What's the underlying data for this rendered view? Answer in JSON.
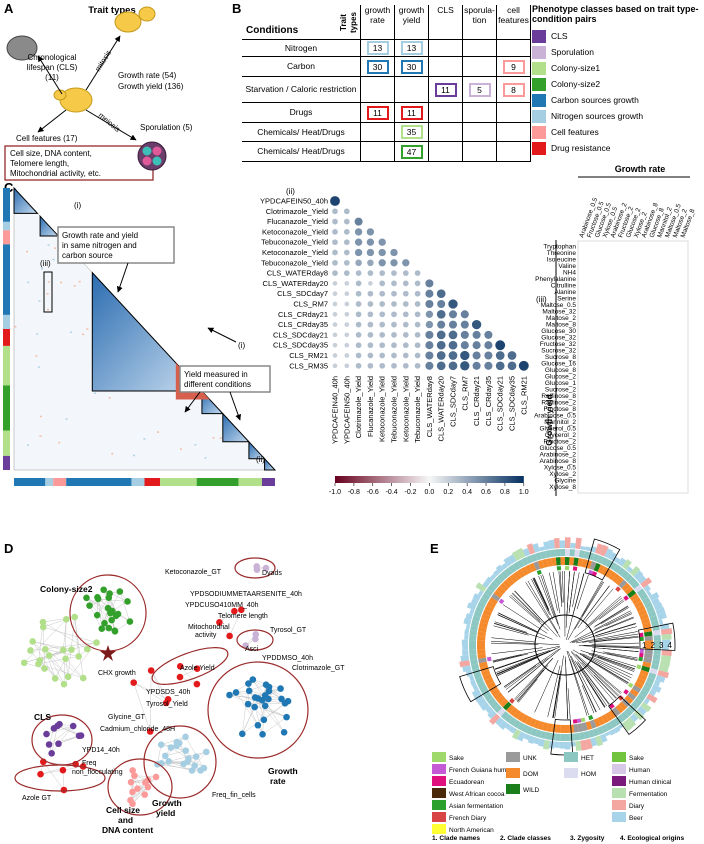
{
  "panel_a": {
    "letter": "A",
    "title": "Trait types",
    "cls": [
      "Chronological",
      "lifespan (CLS)",
      "(11)"
    ],
    "mitosis": "mitosis",
    "growth": [
      "Growth rate (54)",
      "Growth yield (136)"
    ],
    "meiosis": "meiosis",
    "cell_features": "Cell features (17)",
    "sporulation": "Sporulation (5)",
    "cell_features_box": [
      "Cell size, DNA content,",
      "Telomere length,",
      "Mitochondrial activity, etc."
    ]
  },
  "panel_b": {
    "letter": "B",
    "header": {
      "trait_types": "Trait types",
      "conditions": "Conditions",
      "columns": [
        "growth rate",
        "growth yield",
        "CLS",
        "sporula-tion",
        "cell features"
      ]
    },
    "rows": [
      {
        "condition": "Nitrogen",
        "cells": [
          13,
          13,
          null,
          null,
          null
        ],
        "colors": [
          "#a6cee3",
          "#a6cee3",
          null,
          null,
          null
        ]
      },
      {
        "condition": "Carbon",
        "cells": [
          30,
          30,
          null,
          null,
          9
        ],
        "colors": [
          "#1f78b4",
          "#1f78b4",
          null,
          null,
          "#fb9a99"
        ]
      },
      {
        "condition": "Starvation / Caloric restriction",
        "cells": [
          null,
          null,
          11,
          5,
          8
        ],
        "colors": [
          null,
          null,
          "#6a3d9a",
          "#cab2d6",
          "#fb9a99"
        ]
      },
      {
        "condition": "Drugs",
        "cells": [
          11,
          11,
          null,
          null,
          null
        ],
        "colors": [
          "#e31a1c",
          "#e31a1c",
          null,
          null,
          null
        ]
      },
      {
        "condition": "Chemicals/ Heat/Drugs",
        "cells": [
          null,
          35,
          null,
          null,
          null
        ],
        "colors": [
          null,
          "#b2df8a",
          null,
          null,
          null
        ]
      },
      {
        "condition": "Chemicals/ Heat/Drugs",
        "cells": [
          null,
          47,
          null,
          null,
          null
        ],
        "colors": [
          null,
          "#33a02c",
          null,
          null,
          null
        ]
      }
    ],
    "legend_title": "Phenotype classes based on trait type-condition pairs",
    "legend": [
      {
        "name": "CLS",
        "color": "#6a3d9a"
      },
      {
        "name": "Sporulation",
        "color": "#cab2d6"
      },
      {
        "name": "Colony-size1",
        "color": "#b2df8a"
      },
      {
        "name": "Colony-size2",
        "color": "#33a02c"
      },
      {
        "name": "Carbon sources growth",
        "color": "#1f78b4"
      },
      {
        "name": "Nitrogen sources growth",
        "color": "#a6cee3"
      },
      {
        "name": "Cell features",
        "color": "#fb9a99"
      },
      {
        "name": "Drug resistance",
        "color": "#e31a1c"
      }
    ]
  },
  "panel_c": {
    "letter": "C",
    "annotations": {
      "i_top": "(i)",
      "box1": [
        "Growth rate and yield",
        "in same nitrogen and",
        "carbon source"
      ],
      "iii": "(iii)",
      "i_mid": "(i)",
      "box2": [
        "Yield measured in",
        "different conditions"
      ],
      "ii": "(ii)"
    },
    "corr": {
      "label": "(ii)",
      "rows": [
        "YPDCAFEIN50_40h",
        "Clotrimazole_Yield",
        "Flucanazole_Yield",
        "Ketoconazole_Yield",
        "Tebuconazole_Yield",
        "Ketoconazole_Yield",
        "Tebuconazole_Yield",
        "CLS_WATERday8",
        "CLS_WATERday20",
        "CLS_SDCday7",
        "CLS_RM7",
        "CLS_CRday21",
        "CLS_CRday35",
        "CLS_SDCday21",
        "CLS_SDCday35",
        "CLS_RM21",
        "CLS_RM35"
      ],
      "columns": [
        "YPDCAFEIN40_40h",
        "YPDCAFEIN50_40h",
        "Clotrimazole_Yield",
        "Flucanazole_Yield",
        "Ketoconazole_Yield",
        "Tebuconazole_Yield",
        "Ketoconazole_Yield",
        "Tebuconazole_Yield",
        "CLS_WATERday8",
        "CLS_WATERday20",
        "CLS_SDCday7",
        "CLS_RM7",
        "CLS_CRday21",
        "CLS_CRday35",
        "CLS_SDCday21",
        "CLS_SDCday35",
        "CLS_RM21"
      ],
      "values": [
        [
          0.9
        ],
        [
          0.3,
          0.3
        ],
        [
          0.3,
          0.3,
          0.6
        ],
        [
          0.3,
          0.3,
          0.5,
          0.5
        ],
        [
          0.3,
          0.3,
          0.5,
          0.5,
          0.5
        ],
        [
          0.3,
          0.3,
          0.5,
          0.5,
          0.5,
          0.5
        ],
        [
          0.3,
          0.3,
          0.4,
          0.4,
          0.5,
          0.5,
          0.5
        ],
        [
          0.3,
          0.3,
          0.3,
          0.3,
          0.3,
          0.3,
          0.3,
          0.3
        ],
        [
          0.2,
          0.2,
          0.3,
          0.2,
          0.3,
          0.3,
          0.3,
          0.3,
          0.6
        ],
        [
          0.2,
          0.2,
          0.3,
          0.3,
          0.3,
          0.3,
          0.3,
          0.3,
          0.6,
          0.7
        ],
        [
          0.2,
          0.2,
          0.3,
          0.3,
          0.3,
          0.3,
          0.3,
          0.3,
          0.6,
          0.6,
          0.8
        ],
        [
          0.2,
          0.2,
          0.3,
          0.3,
          0.3,
          0.3,
          0.3,
          0.3,
          0.5,
          0.7,
          0.6,
          0.6
        ],
        [
          0.2,
          0.2,
          0.3,
          0.3,
          0.3,
          0.3,
          0.3,
          0.3,
          0.5,
          0.6,
          0.6,
          0.6,
          0.8
        ],
        [
          0.2,
          0.2,
          0.3,
          0.3,
          0.3,
          0.3,
          0.3,
          0.3,
          0.6,
          0.7,
          0.7,
          0.6,
          0.6,
          0.6
        ],
        [
          0.2,
          0.2,
          0.3,
          0.3,
          0.3,
          0.3,
          0.3,
          0.3,
          0.6,
          0.7,
          0.7,
          0.6,
          0.6,
          0.6,
          0.9
        ],
        [
          0.2,
          0.2,
          0.3,
          0.3,
          0.3,
          0.3,
          0.3,
          0.3,
          0.6,
          0.7,
          0.7,
          0.8,
          0.6,
          0.6,
          0.7,
          0.7
        ],
        [
          0.2,
          0.2,
          0.3,
          0.3,
          0.3,
          0.3,
          0.3,
          0.3,
          0.6,
          0.7,
          0.7,
          0.8,
          0.6,
          0.6,
          0.7,
          0.7,
          0.9
        ]
      ],
      "colorbar_lim": [
        -1,
        1
      ],
      "colorbar_ticks": [
        {
          "value": -1,
          "label": "-1.0"
        },
        {
          "value": -0.8,
          "label": "-0.8"
        },
        {
          "value": -0.6,
          "label": "-0.6"
        },
        {
          "value": -0.4,
          "label": "-0.4"
        },
        {
          "value": -0.2,
          "label": "-0.2"
        },
        {
          "value": 0,
          "label": "0.0"
        },
        {
          "value": 0.2,
          "label": "0.2"
        },
        {
          "value": 0.4,
          "label": "0.4"
        },
        {
          "value": 0.6,
          "label": "0.6"
        },
        {
          "value": 0.8,
          "label": "0.8"
        },
        {
          "value": 1,
          "label": "1.0"
        }
      ]
    },
    "iii": {
      "label": "(iii)",
      "x_title": "Growth rate",
      "y_title": "Growth yield",
      "columns": [
        "Arabinose_0.5",
        "Fructose_0.5",
        "Glucose_0.5",
        "Xylose_0.5",
        "Arabinose_2",
        "Fructose_2",
        "Glucose_2",
        "Xylose_2",
        "Arabinose_8",
        "Glucose_8",
        "Mannitol_2",
        "Maltose_0.5",
        "Maltose_2",
        "Maltose_8"
      ],
      "rows": [
        "Tryptophan",
        "Threonine",
        "Isoleucine",
        "Valine",
        "NH4",
        "Phenylalanine",
        "Citrulline",
        "Alanine",
        "Serine",
        "Maltose_0.5",
        "Maltose_32",
        "Maltose_2",
        "Maltose_8",
        "Glucose_30",
        "Glucose_32",
        "Fructose_32",
        "Sucrose_32",
        "Sucrose_8",
        "Glucose_16",
        "Glucose_8",
        "Glucose_2",
        "Glucose_1",
        "Sucrose_2",
        "Raffinose_8",
        "Raffinose_2",
        "Fructose_8",
        "Arabinose_0.5",
        "Mannitol_2",
        "Glycerol_0.5",
        "Glycerol_2",
        "Fructose_2",
        "Glucose_0.5",
        "Arabinose_2",
        "Arabinose_8",
        "Xylose_0.5",
        "Xylose_2",
        "Glycine",
        "Xylose_8"
      ]
    }
  },
  "panel_d": {
    "letter": "D",
    "labels": [
      "Ketoconazole_GT",
      "Dyads",
      "Colony-size2",
      "YPDSODIUMMETAARSENITE_40h",
      "YPDCUSO410MM_40h",
      "Telomere length",
      "Mitochondrial",
      "activity",
      "Tyrosol_GT",
      "Asci",
      "YPDDMSO_40h",
      "Clotrimazole_GT",
      "CHX growth",
      "Azole Yield",
      "YPDSDS_40h",
      "Tyrosol_Yield",
      "Glycine_GT",
      "Cadmium_chloride_48H",
      "CLS",
      "YPD14_40h",
      "Freq",
      "non_flocculating",
      "Growth",
      "rate",
      "Freq_fin_cells",
      "Growth",
      "yield",
      "Azole GT",
      "Cell size",
      "and",
      "DNA content"
    ]
  },
  "panel_e": {
    "letter": "E",
    "ring_labels": [
      1,
      2,
      3,
      4
    ],
    "legends": [
      {
        "title": "1. Clade names",
        "items": [
          {
            "name": "Sake",
            "color": "#9fd86b"
          },
          {
            "name": "French Guiana human",
            "color": "#c45ad6"
          },
          {
            "name": "Ecuadorean",
            "color": "#e0117f"
          },
          {
            "name": "West African cocoa",
            "color": "#4a2a0a"
          },
          {
            "name": "Asian fermentation",
            "color": "#2ca02c"
          },
          {
            "name": "French Diary",
            "color": "#d84545"
          },
          {
            "name": "North American",
            "color": "#ffff33"
          }
        ]
      },
      {
        "title": "2. Clade classes",
        "items": [
          {
            "name": "UNK",
            "color": "#9a9a9a"
          },
          {
            "name": "DOM",
            "color": "#f58a2c"
          },
          {
            "name": "WILD",
            "color": "#1a7f1a"
          }
        ]
      },
      {
        "title": "3. Zygosity",
        "items": [
          {
            "name": "HET",
            "color": "#8cc7c2"
          },
          {
            "name": "HOM",
            "color": "#dcdcf0"
          }
        ]
      },
      {
        "title": "4. Ecological origins",
        "items": [
          {
            "name": "Sake",
            "color": "#72c43e"
          },
          {
            "name": "Human",
            "color": "#d8c8e8"
          },
          {
            "name": "Human clinical",
            "color": "#7a1a7a"
          },
          {
            "name": "Fermentation",
            "color": "#b8e0b0"
          },
          {
            "name": "Diary",
            "color": "#f4a6a0"
          },
          {
            "name": "Beer",
            "color": "#a8d4ea"
          }
        ]
      }
    ]
  }
}
